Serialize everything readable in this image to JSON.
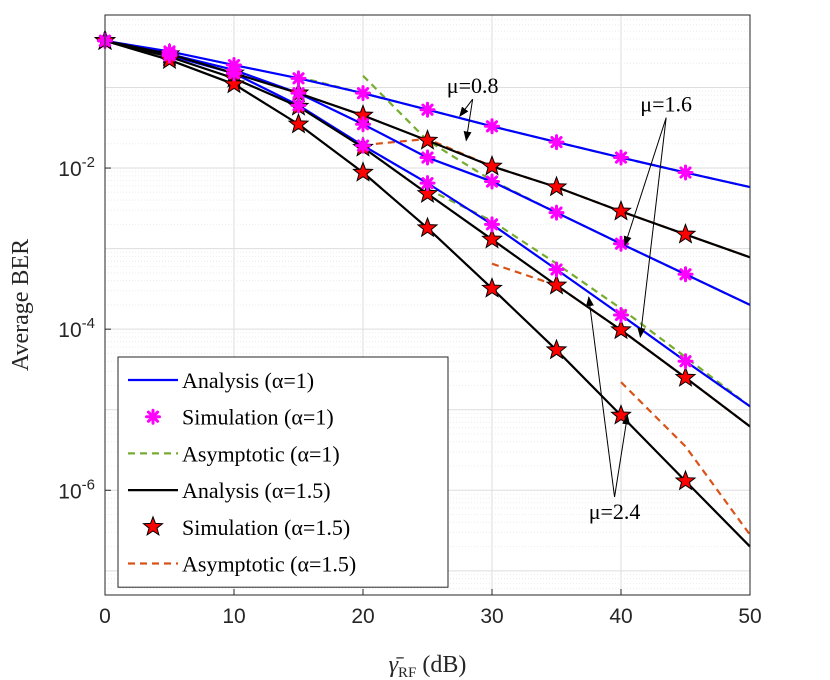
{
  "chart_data": {
    "type": "line",
    "title": "",
    "xlabel": "γ̄",
    "xlabel_sub": "RF",
    "xlabel_unit": "(dB)",
    "ylabel": "Average BER",
    "xlim": [
      0,
      50
    ],
    "ylim_log10": [
      -7.3,
      -0.1
    ],
    "yscale": "log",
    "grid": true,
    "x_ticks": [
      "0",
      "10",
      "20",
      "30",
      "40",
      "50"
    ],
    "y_ticks": [
      {
        "base": "10",
        "exp": "-2",
        "log": -2
      },
      {
        "base": "10",
        "exp": "-4",
        "log": -4
      },
      {
        "base": "10",
        "exp": "-6",
        "log": -6
      }
    ],
    "x_ticks_values": [
      0,
      10,
      20,
      30,
      40,
      50
    ],
    "legend_placement": "bottom-left",
    "legend": [
      {
        "label": "Analysis (α=1)",
        "style": "blue-solid"
      },
      {
        "label": "Simulation (α=1)",
        "style": "magenta-asterisk"
      },
      {
        "label": "Asymptotic (α=1)",
        "style": "green-dashed"
      },
      {
        "label": "Analysis (α=1.5)",
        "style": "black-solid"
      },
      {
        "label": "Simulation (α=1.5)",
        "style": "red-star"
      },
      {
        "label": "Asymptotic (α=1.5)",
        "style": "orange-dashed"
      }
    ],
    "annotations": [
      {
        "text": "μ=0.8",
        "x": 28.5,
        "y": 0.085,
        "arrows": [
          [
            27.5,
            0.044
          ],
          [
            28,
            0.022
          ]
        ]
      },
      {
        "text": "μ=1.6",
        "x": 43.5,
        "y": 0.05,
        "arrows": [
          [
            40.3,
            0.0011
          ],
          [
            41.5,
            8e-05
          ]
        ]
      },
      {
        "text": "μ=2.4",
        "x": 39.5,
        "y": 4.4e-07,
        "arrows": [
          [
            37.5,
            0.00025
          ],
          [
            40.5,
            8.5e-06
          ]
        ]
      }
    ],
    "colors": {
      "analysis_a1": "#0000ff",
      "sim_a1": "#ff00ff",
      "asym_a1": "#77ac30",
      "analysis_a15": "#000000",
      "sim_a15": "#ff0000",
      "asym_a15": "#d95319"
    },
    "series": [
      {
        "name": "Analysis (α=1), μ=0.8",
        "kind": "analysis_a1",
        "x": [
          0,
          5,
          10,
          15,
          20,
          25,
          30,
          35,
          40,
          45,
          50
        ],
        "y": [
          0.38,
          0.28,
          0.19,
          0.13,
          0.085,
          0.053,
          0.033,
          0.021,
          0.0135,
          0.0088,
          0.0058
        ]
      },
      {
        "name": "Analysis (α=1), μ=1.6",
        "kind": "analysis_a1",
        "x": [
          0,
          5,
          10,
          15,
          20,
          25,
          30,
          35,
          40,
          45,
          50
        ],
        "y": [
          0.38,
          0.26,
          0.165,
          0.085,
          0.035,
          0.0135,
          0.0068,
          0.0028,
          0.00115,
          0.00048,
          0.0002
        ]
      },
      {
        "name": "Analysis (α=1), μ=2.4",
        "kind": "analysis_a1",
        "x": [
          0,
          5,
          10,
          15,
          20,
          25,
          30,
          35,
          40,
          45,
          50
        ],
        "y": [
          0.38,
          0.25,
          0.15,
          0.06,
          0.019,
          0.0065,
          0.002,
          0.00055,
          0.00015,
          4e-05,
          1.1e-05
        ]
      },
      {
        "name": "Analysis (α=1.5), μ=0.8",
        "kind": "analysis_a15",
        "x": [
          0,
          5,
          10,
          15,
          20,
          25,
          30,
          35,
          40,
          45,
          50
        ],
        "y": [
          0.38,
          0.26,
          0.15,
          0.085,
          0.045,
          0.022,
          0.0105,
          0.0058,
          0.0029,
          0.0015,
          0.00078
        ]
      },
      {
        "name": "Analysis (α=1.5), μ=1.6",
        "kind": "analysis_a15",
        "x": [
          0,
          5,
          10,
          15,
          20,
          25,
          30,
          35,
          40,
          45,
          50
        ],
        "y": [
          0.38,
          0.24,
          0.13,
          0.058,
          0.018,
          0.0048,
          0.0013,
          0.00035,
          9.77e-05,
          2.5e-05,
          6.2e-06
        ]
      },
      {
        "name": "Analysis (α=1.5), μ=2.4",
        "kind": "analysis_a15",
        "x": [
          0,
          5,
          10,
          15,
          20,
          25,
          30,
          35,
          40,
          45,
          50
        ],
        "y": [
          0.38,
          0.22,
          0.11,
          0.035,
          0.0088,
          0.0018,
          0.00032,
          5.5e-05,
          8.5e-06,
          1.3e-06,
          2e-07
        ]
      },
      {
        "name": "Simulation (α=1), μ=0.8",
        "kind": "sim_a1",
        "x": [
          0,
          5,
          10,
          15,
          20,
          25,
          30,
          35,
          40,
          45
        ],
        "y": [
          0.38,
          0.28,
          0.19,
          0.13,
          0.085,
          0.053,
          0.033,
          0.021,
          0.0135,
          0.0088
        ]
      },
      {
        "name": "Simulation (α=1), μ=1.6",
        "kind": "sim_a1",
        "x": [
          0,
          5,
          10,
          15,
          20,
          25,
          30,
          35,
          40,
          45
        ],
        "y": [
          0.38,
          0.26,
          0.165,
          0.085,
          0.035,
          0.0135,
          0.0068,
          0.0028,
          0.00115,
          0.00048
        ]
      },
      {
        "name": "Simulation (α=1), μ=2.4",
        "kind": "sim_a1",
        "x": [
          0,
          5,
          10,
          15,
          20,
          25,
          30,
          35,
          40,
          45
        ],
        "y": [
          0.38,
          0.25,
          0.15,
          0.06,
          0.019,
          0.0065,
          0.002,
          0.00055,
          0.00015,
          4e-05
        ]
      },
      {
        "name": "Simulation (α=1.5), μ=0.8",
        "kind": "sim_a15",
        "x": [
          0,
          5,
          10,
          15,
          20,
          25,
          30,
          35,
          40,
          45
        ],
        "y": [
          0.38,
          0.26,
          0.15,
          0.085,
          0.045,
          0.022,
          0.0105,
          0.0058,
          0.0029,
          0.0015
        ]
      },
      {
        "name": "Simulation (α=1.5), μ=1.6",
        "kind": "sim_a15",
        "x": [
          0,
          5,
          10,
          15,
          20,
          25,
          30,
          35,
          40,
          45
        ],
        "y": [
          0.38,
          0.24,
          0.13,
          0.058,
          0.018,
          0.0048,
          0.0013,
          0.00035,
          9.77e-05,
          2.5e-05
        ]
      },
      {
        "name": "Simulation (α=1.5), μ=2.4",
        "kind": "sim_a15",
        "x": [
          0,
          5,
          10,
          15,
          20,
          25,
          30,
          35,
          40,
          45
        ],
        "y": [
          0.38,
          0.22,
          0.11,
          0.035,
          0.0088,
          0.0018,
          0.00032,
          5.5e-05,
          8.5e-06,
          1.3e-06
        ]
      },
      {
        "name": "Asymptotic (α=1), μ=0.8",
        "kind": "asym_a1",
        "x": [
          15,
          20,
          25,
          30,
          35,
          40,
          45,
          50
        ],
        "y": [
          0.135,
          0.085,
          0.053,
          0.033,
          0.021,
          0.0135,
          0.0088,
          0.0058
        ]
      },
      {
        "name": "Asymptotic (α=1), μ=1.6",
        "kind": "asym_a1",
        "x": [
          20,
          25,
          30,
          35,
          40,
          45,
          50
        ],
        "y": [
          0.14,
          0.022,
          0.007,
          0.0028,
          0.00115,
          0.00048,
          0.0002
        ]
      },
      {
        "name": "Asymptotic (α=1), μ=2.4",
        "kind": "asym_a1",
        "x": [
          25,
          30,
          35,
          40,
          45,
          50
        ],
        "y": [
          0.0055,
          0.0022,
          0.00065,
          0.00018,
          4.5e-05,
          1.1e-05
        ]
      },
      {
        "name": "Asymptotic (α=1.5), μ=0.8",
        "kind": "asym_a15",
        "x": [
          21,
          25,
          30,
          35,
          40,
          45,
          50
        ],
        "y": [
          0.02,
          0.023,
          0.0105,
          0.0058,
          0.0029,
          0.0015,
          0.00078
        ]
      },
      {
        "name": "Asymptotic (α=1.5), μ=1.6",
        "kind": "asym_a15",
        "x": [
          30,
          35,
          40,
          45,
          50
        ],
        "y": [
          0.00065,
          0.00035,
          9.77e-05,
          2.5e-05,
          6.2e-06
        ]
      },
      {
        "name": "Asymptotic (α=1.5), μ=2.4",
        "kind": "asym_a15",
        "x": [
          40,
          45,
          50
        ],
        "y": [
          2.2e-05,
          3.5e-06,
          2.8e-07
        ]
      }
    ]
  }
}
